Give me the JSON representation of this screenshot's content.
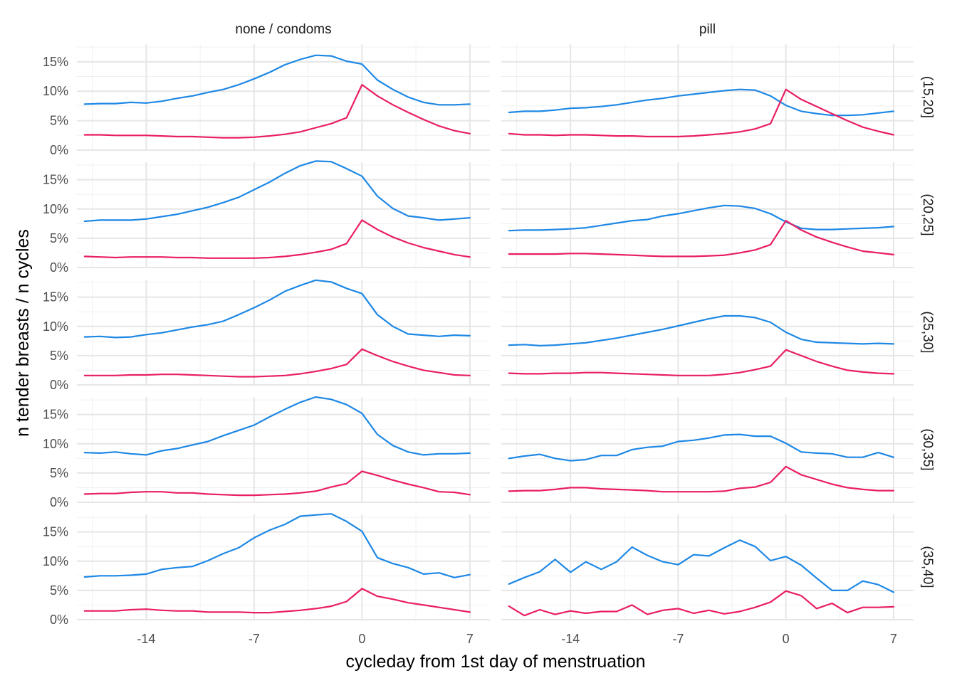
{
  "chart_data": {
    "type": "line",
    "title": "",
    "xlabel": "cycleday from 1st day of menstruation",
    "ylabel": "n tender breasts / n cycles",
    "xlim": [
      -18.5,
      8.3
    ],
    "ylim": [
      0,
      0.18
    ],
    "x_ticks": [
      -14,
      -7,
      0,
      7
    ],
    "x_tick_labels": [
      "-14",
      "-7",
      "0",
      "7"
    ],
    "y_ticks": [
      0,
      0.05,
      0.1,
      0.15
    ],
    "y_tick_labels": [
      "0%",
      "5%",
      "10%",
      "15%"
    ],
    "grid": true,
    "legend": "none",
    "colors": {
      "blue": "#1E88E5",
      "red": "#E91E63"
    },
    "x": [
      -18,
      -17,
      -16,
      -15,
      -14,
      -13,
      -12,
      -11,
      -10,
      -9,
      -8,
      -7,
      -6,
      -5,
      -4,
      -3,
      -2,
      -1,
      0,
      1,
      2,
      3,
      4,
      5,
      6,
      7
    ],
    "columns": [
      "none / condoms",
      "pill"
    ],
    "rows": [
      "(15,20]",
      "(20,25]",
      "(25,30]",
      "(30,35]",
      "(35,40]"
    ],
    "panels": [
      {
        "column": "none / condoms",
        "row": "(15,20]",
        "blue": [
          0.078,
          0.079,
          0.079,
          0.081,
          0.08,
          0.083,
          0.088,
          0.092,
          0.098,
          0.103,
          0.111,
          0.121,
          0.132,
          0.145,
          0.154,
          0.161,
          0.16,
          0.151,
          0.146,
          0.119,
          0.103,
          0.09,
          0.081,
          0.077,
          0.077,
          0.078
        ],
        "red": [
          0.026,
          0.026,
          0.025,
          0.025,
          0.025,
          0.024,
          0.023,
          0.023,
          0.022,
          0.021,
          0.021,
          0.022,
          0.024,
          0.027,
          0.031,
          0.038,
          0.045,
          0.055,
          0.111,
          0.092,
          0.077,
          0.064,
          0.052,
          0.041,
          0.033,
          0.028
        ]
      },
      {
        "column": "pill",
        "row": "(15,20]",
        "blue": [
          0.064,
          0.066,
          0.066,
          0.068,
          0.071,
          0.072,
          0.074,
          0.077,
          0.081,
          0.085,
          0.088,
          0.092,
          0.095,
          0.098,
          0.101,
          0.103,
          0.102,
          0.092,
          0.076,
          0.066,
          0.062,
          0.059,
          0.059,
          0.06,
          0.063,
          0.066
        ],
        "red": [
          0.028,
          0.026,
          0.026,
          0.025,
          0.026,
          0.026,
          0.025,
          0.024,
          0.024,
          0.023,
          0.023,
          0.023,
          0.024,
          0.026,
          0.028,
          0.031,
          0.036,
          0.045,
          0.103,
          0.086,
          0.074,
          0.062,
          0.05,
          0.039,
          0.032,
          0.026
        ]
      },
      {
        "column": "none / condoms",
        "row": "(20,25]",
        "blue": [
          0.079,
          0.081,
          0.081,
          0.081,
          0.083,
          0.087,
          0.091,
          0.097,
          0.103,
          0.111,
          0.12,
          0.133,
          0.146,
          0.161,
          0.174,
          0.182,
          0.181,
          0.169,
          0.156,
          0.122,
          0.101,
          0.088,
          0.085,
          0.081,
          0.083,
          0.085
        ],
        "red": [
          0.019,
          0.018,
          0.017,
          0.018,
          0.018,
          0.018,
          0.017,
          0.017,
          0.016,
          0.016,
          0.016,
          0.016,
          0.017,
          0.019,
          0.022,
          0.026,
          0.031,
          0.041,
          0.081,
          0.065,
          0.052,
          0.042,
          0.034,
          0.028,
          0.022,
          0.018
        ]
      },
      {
        "column": "pill",
        "row": "(20,25]",
        "blue": [
          0.063,
          0.064,
          0.064,
          0.065,
          0.066,
          0.068,
          0.072,
          0.076,
          0.08,
          0.082,
          0.088,
          0.092,
          0.097,
          0.102,
          0.106,
          0.105,
          0.101,
          0.092,
          0.078,
          0.067,
          0.065,
          0.065,
          0.066,
          0.067,
          0.068,
          0.07
        ],
        "red": [
          0.023,
          0.023,
          0.023,
          0.023,
          0.024,
          0.024,
          0.023,
          0.022,
          0.021,
          0.02,
          0.019,
          0.019,
          0.019,
          0.02,
          0.021,
          0.025,
          0.03,
          0.039,
          0.08,
          0.064,
          0.052,
          0.043,
          0.035,
          0.028,
          0.025,
          0.022
        ]
      },
      {
        "column": "none / condoms",
        "row": "(25,30]",
        "blue": [
          0.082,
          0.083,
          0.081,
          0.082,
          0.086,
          0.089,
          0.094,
          0.099,
          0.103,
          0.109,
          0.12,
          0.132,
          0.145,
          0.16,
          0.17,
          0.179,
          0.176,
          0.165,
          0.156,
          0.12,
          0.1,
          0.087,
          0.085,
          0.083,
          0.085,
          0.084
        ],
        "red": [
          0.016,
          0.016,
          0.016,
          0.017,
          0.017,
          0.018,
          0.018,
          0.017,
          0.016,
          0.015,
          0.014,
          0.014,
          0.015,
          0.016,
          0.019,
          0.023,
          0.028,
          0.035,
          0.061,
          0.05,
          0.04,
          0.032,
          0.025,
          0.021,
          0.017,
          0.016
        ]
      },
      {
        "column": "pill",
        "row": "(25,30]",
        "blue": [
          0.068,
          0.069,
          0.067,
          0.068,
          0.07,
          0.072,
          0.076,
          0.08,
          0.085,
          0.09,
          0.095,
          0.101,
          0.107,
          0.113,
          0.118,
          0.118,
          0.115,
          0.107,
          0.09,
          0.078,
          0.073,
          0.072,
          0.071,
          0.07,
          0.071,
          0.07
        ],
        "red": [
          0.02,
          0.019,
          0.019,
          0.02,
          0.02,
          0.021,
          0.021,
          0.02,
          0.019,
          0.018,
          0.017,
          0.016,
          0.016,
          0.016,
          0.018,
          0.021,
          0.026,
          0.032,
          0.06,
          0.05,
          0.04,
          0.032,
          0.025,
          0.022,
          0.02,
          0.019
        ]
      },
      {
        "column": "none / condoms",
        "row": "(30,35]",
        "blue": [
          0.085,
          0.084,
          0.086,
          0.083,
          0.081,
          0.088,
          0.092,
          0.098,
          0.104,
          0.114,
          0.123,
          0.132,
          0.146,
          0.159,
          0.171,
          0.18,
          0.176,
          0.167,
          0.152,
          0.116,
          0.097,
          0.086,
          0.081,
          0.083,
          0.083,
          0.084
        ],
        "red": [
          0.014,
          0.015,
          0.015,
          0.017,
          0.018,
          0.018,
          0.016,
          0.016,
          0.014,
          0.013,
          0.012,
          0.012,
          0.013,
          0.014,
          0.016,
          0.019,
          0.026,
          0.032,
          0.053,
          0.046,
          0.038,
          0.031,
          0.025,
          0.018,
          0.017,
          0.013
        ]
      },
      {
        "column": "pill",
        "row": "(30,35]",
        "blue": [
          0.075,
          0.079,
          0.082,
          0.075,
          0.071,
          0.073,
          0.08,
          0.08,
          0.09,
          0.094,
          0.096,
          0.104,
          0.106,
          0.11,
          0.115,
          0.116,
          0.113,
          0.113,
          0.101,
          0.086,
          0.084,
          0.083,
          0.077,
          0.077,
          0.085,
          0.077
        ],
        "red": [
          0.019,
          0.02,
          0.02,
          0.022,
          0.025,
          0.025,
          0.023,
          0.022,
          0.021,
          0.02,
          0.018,
          0.018,
          0.018,
          0.018,
          0.019,
          0.024,
          0.026,
          0.034,
          0.061,
          0.047,
          0.039,
          0.031,
          0.025,
          0.022,
          0.02,
          0.02
        ]
      },
      {
        "column": "none / condoms",
        "row": "(35,40]",
        "blue": [
          0.073,
          0.075,
          0.075,
          0.076,
          0.078,
          0.086,
          0.089,
          0.091,
          0.101,
          0.113,
          0.123,
          0.14,
          0.153,
          0.163,
          0.177,
          0.179,
          0.181,
          0.168,
          0.151,
          0.106,
          0.096,
          0.089,
          0.078,
          0.08,
          0.072,
          0.077
        ],
        "red": [
          0.015,
          0.015,
          0.015,
          0.017,
          0.018,
          0.016,
          0.015,
          0.015,
          0.013,
          0.013,
          0.013,
          0.012,
          0.012,
          0.014,
          0.016,
          0.019,
          0.023,
          0.031,
          0.053,
          0.04,
          0.035,
          0.029,
          0.025,
          0.021,
          0.017,
          0.013
        ]
      },
      {
        "column": "pill",
        "row": "(35,40]",
        "blue": [
          0.061,
          0.072,
          0.082,
          0.103,
          0.081,
          0.099,
          0.086,
          0.099,
          0.124,
          0.11,
          0.099,
          0.094,
          0.111,
          0.109,
          0.123,
          0.136,
          0.125,
          0.101,
          0.108,
          0.093,
          0.071,
          0.05,
          0.05,
          0.066,
          0.06,
          0.047
        ],
        "red": [
          0.023,
          0.007,
          0.017,
          0.009,
          0.015,
          0.011,
          0.014,
          0.014,
          0.025,
          0.009,
          0.016,
          0.019,
          0.011,
          0.016,
          0.01,
          0.014,
          0.021,
          0.03,
          0.049,
          0.041,
          0.019,
          0.028,
          0.012,
          0.021,
          0.021,
          0.022
        ]
      }
    ]
  }
}
